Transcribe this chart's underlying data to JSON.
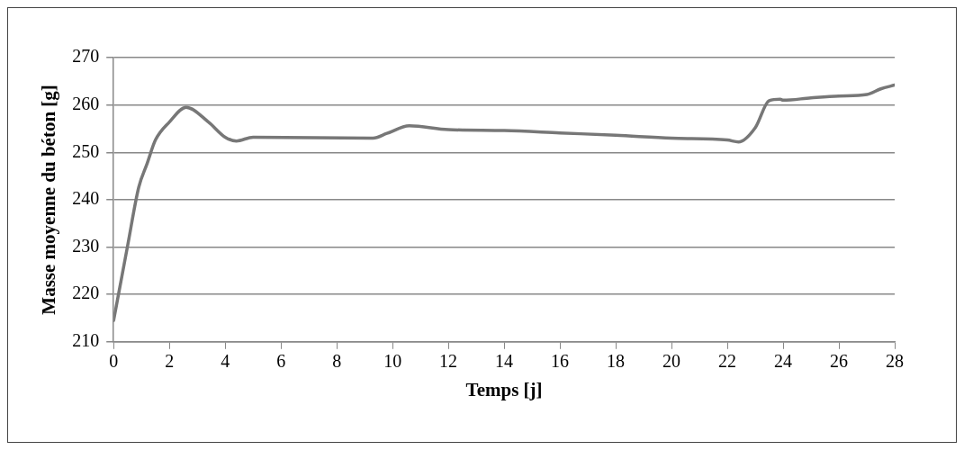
{
  "chart_data": {
    "type": "line",
    "xlabel": "Temps [j]",
    "ylabel": "Masse moyenne du béton [g]",
    "x": [
      0,
      0.5,
      0.9,
      1.2,
      1.5,
      2,
      2.6,
      3.4,
      4,
      4.4,
      5,
      9.3,
      9.8,
      10.6,
      12,
      14,
      16,
      18,
      20,
      22,
      22.4,
      23,
      23.5,
      23.9,
      24,
      25,
      26,
      27,
      27.5,
      28
    ],
    "series": [
      {
        "color": "#777777",
        "values": [
          214.5,
          230.2,
          242.6,
          247.6,
          252.6,
          256.4,
          259.5,
          256.4,
          253.2,
          252.4,
          253.2,
          253.0,
          254.0,
          255.6,
          254.8,
          254.6,
          254.1,
          253.6,
          253.0,
          252.6,
          252.2,
          255.2,
          260.9,
          261.2,
          261.0,
          261.5,
          261.9,
          262.2,
          263.4,
          264.2
        ]
      }
    ],
    "xlim": [
      0,
      28
    ],
    "xticks": [
      0,
      2,
      4,
      6,
      8,
      10,
      12,
      14,
      16,
      18,
      20,
      22,
      24,
      26,
      28
    ],
    "ylim": [
      210,
      270
    ],
    "yticks": [
      210,
      220,
      230,
      240,
      250,
      260,
      270
    ],
    "grid": "y",
    "legend": false,
    "marker": "none",
    "line_style": "solid"
  }
}
